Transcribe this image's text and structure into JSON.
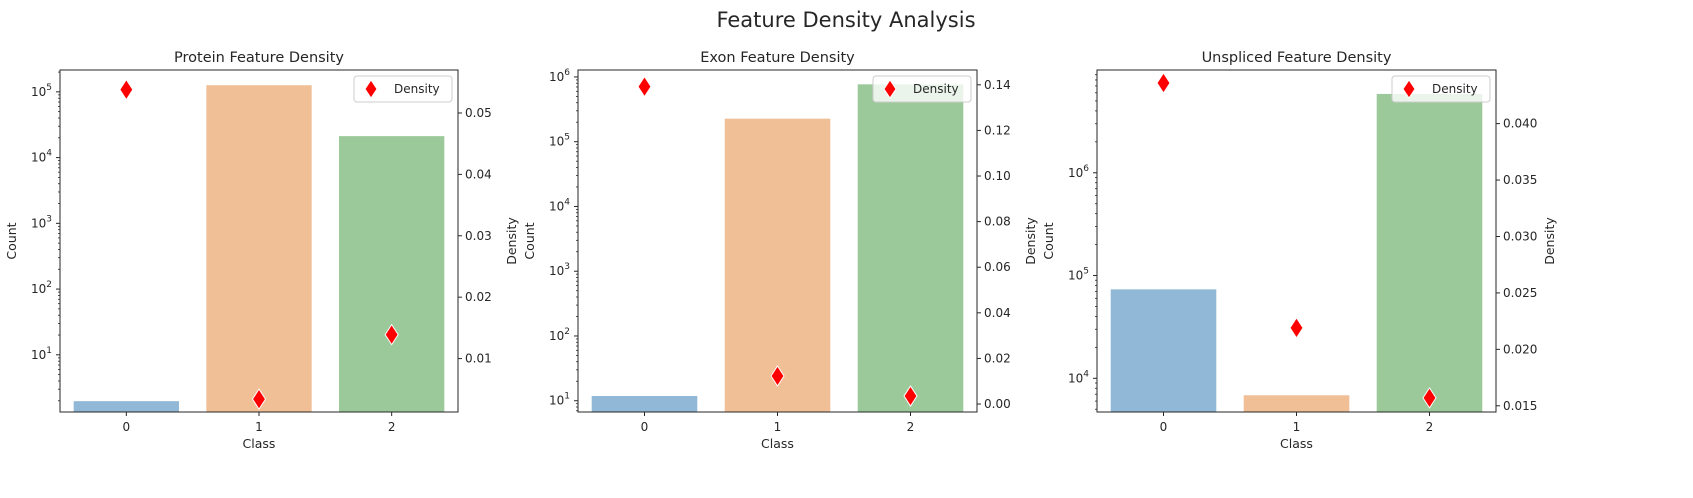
{
  "figure": {
    "suptitle": "Feature Density Analysis"
  },
  "legend": {
    "label": "Density",
    "placement": "upper right"
  },
  "colors": {
    "bars": [
      "#91b8d6",
      "#f0bf96",
      "#9bc99a"
    ],
    "marker": "#ff0000",
    "marker_edge": "#ffffff",
    "axis": "#262626"
  },
  "chart_data": [
    {
      "type": "bar",
      "title": "Protein Feature Density",
      "xlabel": "Class",
      "ylabel": "Count",
      "y2label": "Density",
      "categories": [
        "0",
        "1",
        "2"
      ],
      "yscale": "log",
      "ylim": [
        1.35,
        215000
      ],
      "y_ticks": [
        {
          "value": 10,
          "exp": "1"
        },
        {
          "value": 100,
          "exp": "2"
        },
        {
          "value": 1000,
          "exp": "3"
        },
        {
          "value": 10000,
          "exp": "4"
        },
        {
          "value": 100000,
          "exp": "5"
        }
      ],
      "counts": [
        2,
        128000,
        21500
      ],
      "y2lim": [
        0.0013,
        0.057
      ],
      "y2_ticks": [
        "0.01",
        "0.02",
        "0.03",
        "0.04",
        "0.05"
      ],
      "density": [
        0.0538,
        0.0034,
        0.0139
      ]
    },
    {
      "type": "bar",
      "title": "Exon Feature Density",
      "xlabel": "Class",
      "ylabel": "Count",
      "y2label": "Density",
      "categories": [
        "0",
        "1",
        "2"
      ],
      "yscale": "log",
      "ylim": [
        6.7,
        1280000
      ],
      "y_ticks": [
        {
          "value": 10,
          "exp": "1"
        },
        {
          "value": 100,
          "exp": "2"
        },
        {
          "value": 1000,
          "exp": "3"
        },
        {
          "value": 10000,
          "exp": "4"
        },
        {
          "value": 100000,
          "exp": "5"
        },
        {
          "value": 1000000,
          "exp": "6"
        }
      ],
      "counts": [
        12,
        230000,
        780000
      ],
      "y2lim": [
        -0.0035,
        0.1465
      ],
      "y2_ticks": [
        "0.00",
        "0.02",
        "0.04",
        "0.06",
        "0.08",
        "0.10",
        "0.12",
        "0.14"
      ],
      "density": [
        0.1392,
        0.0123,
        0.0035
      ]
    },
    {
      "type": "bar",
      "title": "Unspliced Feature Density",
      "xlabel": "Class",
      "ylabel": "Count",
      "y2label": "Density",
      "categories": [
        "0",
        "1",
        "2"
      ],
      "yscale": "log",
      "ylim": [
        4700,
        10000000
      ],
      "y_ticks": [
        {
          "value": 10000,
          "exp": "4"
        },
        {
          "value": 100000,
          "exp": "5"
        },
        {
          "value": 1000000,
          "exp": "6"
        }
      ],
      "counts": [
        74000,
        6900,
        5900000
      ],
      "y2lim": [
        0.01445,
        0.04475
      ],
      "y2_ticks": [
        "0.015",
        "0.020",
        "0.025",
        "0.030",
        "0.035",
        "0.040"
      ],
      "density": [
        0.0436,
        0.0219,
        0.0157
      ]
    }
  ]
}
